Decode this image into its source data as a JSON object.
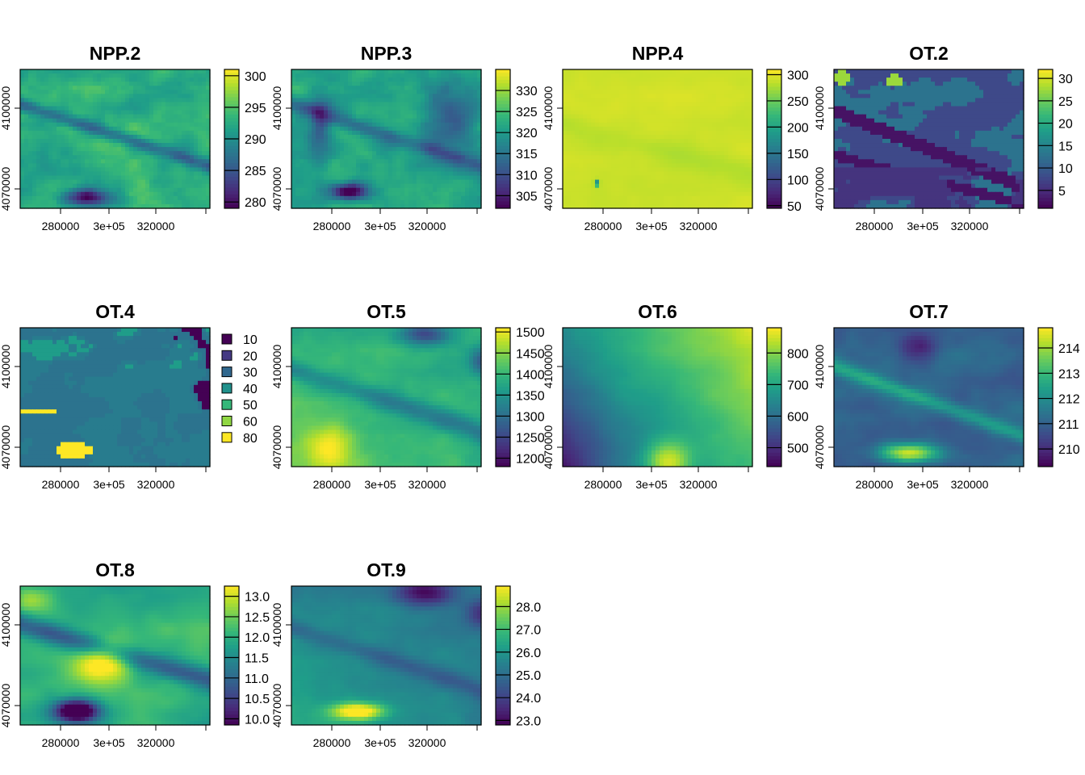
{
  "chart_data": [
    {
      "type": "heatmap",
      "title": "NPP.2",
      "xticks": [
        "280000",
        "3e+05",
        "320000"
      ],
      "yticks": [
        "4070000",
        "4100000"
      ],
      "legend": {
        "kind": "continuous",
        "ticks": [
          "280",
          "285",
          "290",
          "295",
          "300"
        ],
        "tick_values": [
          280,
          285,
          290,
          295,
          300
        ],
        "range": [
          279,
          301
        ]
      },
      "pattern": "npp2"
    },
    {
      "type": "heatmap",
      "title": "NPP.3",
      "xticks": [
        "280000",
        "3e+05",
        "320000"
      ],
      "yticks": [
        "4070000",
        "4100000"
      ],
      "legend": {
        "kind": "continuous",
        "ticks": [
          "305",
          "310",
          "315",
          "320",
          "325",
          "330"
        ],
        "tick_values": [
          305,
          310,
          315,
          320,
          325,
          330
        ],
        "range": [
          302,
          335
        ]
      },
      "pattern": "npp3"
    },
    {
      "type": "heatmap",
      "title": "NPP.4",
      "xticks": [
        "280000",
        "3e+05",
        "320000"
      ],
      "yticks": [
        "4070000",
        "4100000"
      ],
      "legend": {
        "kind": "continuous",
        "ticks": [
          "50",
          "100",
          "150",
          "200",
          "250",
          "300"
        ],
        "tick_values": [
          50,
          100,
          150,
          200,
          250,
          300
        ],
        "range": [
          45,
          310
        ]
      },
      "pattern": "npp4"
    },
    {
      "type": "heatmap",
      "title": "OT.2",
      "xticks": [
        "280000",
        "3e+05",
        "320000"
      ],
      "yticks": [
        "4070000",
        "4100000"
      ],
      "legend": {
        "kind": "continuous",
        "ticks": [
          "5",
          "10",
          "15",
          "20",
          "25",
          "30"
        ],
        "tick_values": [
          5,
          10,
          15,
          20,
          25,
          30
        ],
        "range": [
          1,
          32
        ]
      },
      "pattern": "ot2"
    },
    {
      "type": "heatmap",
      "title": "OT.4",
      "xticks": [
        "280000",
        "3e+05",
        "320000"
      ],
      "yticks": [
        "4070000",
        "4100000"
      ],
      "legend": {
        "kind": "categorical",
        "labels": [
          "10",
          "20",
          "30",
          "40",
          "50",
          "60",
          "80"
        ],
        "colors": [
          "#440154",
          "#443983",
          "#31688e",
          "#21918c",
          "#35b779",
          "#90d743",
          "#fde725"
        ]
      },
      "pattern": "ot4"
    },
    {
      "type": "heatmap",
      "title": "OT.5",
      "xticks": [
        "280000",
        "3e+05",
        "320000"
      ],
      "yticks": [
        "4070000",
        "4100000"
      ],
      "legend": {
        "kind": "continuous",
        "ticks": [
          "1200",
          "1250",
          "1300",
          "1350",
          "1400",
          "1450",
          "1500"
        ],
        "tick_values": [
          1200,
          1250,
          1300,
          1350,
          1400,
          1450,
          1500
        ],
        "range": [
          1180,
          1510
        ]
      },
      "pattern": "ot5"
    },
    {
      "type": "heatmap",
      "title": "OT.6",
      "xticks": [
        "280000",
        "3e+05",
        "320000"
      ],
      "yticks": [
        "4070000",
        "4100000"
      ],
      "legend": {
        "kind": "continuous",
        "ticks": [
          "500",
          "600",
          "700",
          "800"
        ],
        "tick_values": [
          500,
          600,
          700,
          800
        ],
        "range": [
          440,
          880
        ]
      },
      "pattern": "ot6"
    },
    {
      "type": "heatmap",
      "title": "OT.7",
      "xticks": [
        "280000",
        "3e+05",
        "320000"
      ],
      "yticks": [
        "4070000",
        "4100000"
      ],
      "legend": {
        "kind": "continuous",
        "ticks": [
          "210",
          "211",
          "212",
          "213",
          "214"
        ],
        "tick_values": [
          210,
          211,
          212,
          213,
          214
        ],
        "range": [
          209.3,
          214.8
        ]
      },
      "pattern": "ot7"
    },
    {
      "type": "heatmap",
      "title": "OT.8",
      "xticks": [
        "280000",
        "3e+05",
        "320000"
      ],
      "yticks": [
        "4070000",
        "4100000"
      ],
      "legend": {
        "kind": "continuous",
        "ticks": [
          "10.0",
          "10.5",
          "11.0",
          "11.5",
          "12.0",
          "12.5",
          "13.0"
        ],
        "tick_values": [
          10,
          10.5,
          11,
          11.5,
          12,
          12.5,
          13
        ],
        "range": [
          9.85,
          13.25
        ]
      },
      "pattern": "ot8"
    },
    {
      "type": "heatmap",
      "title": "OT.9",
      "xticks": [
        "280000",
        "3e+05",
        "320000"
      ],
      "yticks": [
        "4070000",
        "4100000"
      ],
      "legend": {
        "kind": "continuous",
        "ticks": [
          "23.0",
          "24.0",
          "25.0",
          "26.0",
          "27.0",
          "28.0"
        ],
        "tick_values": [
          23,
          24,
          25,
          26,
          27,
          28
        ],
        "range": [
          22.8,
          28.9
        ]
      },
      "pattern": "ot9"
    }
  ]
}
